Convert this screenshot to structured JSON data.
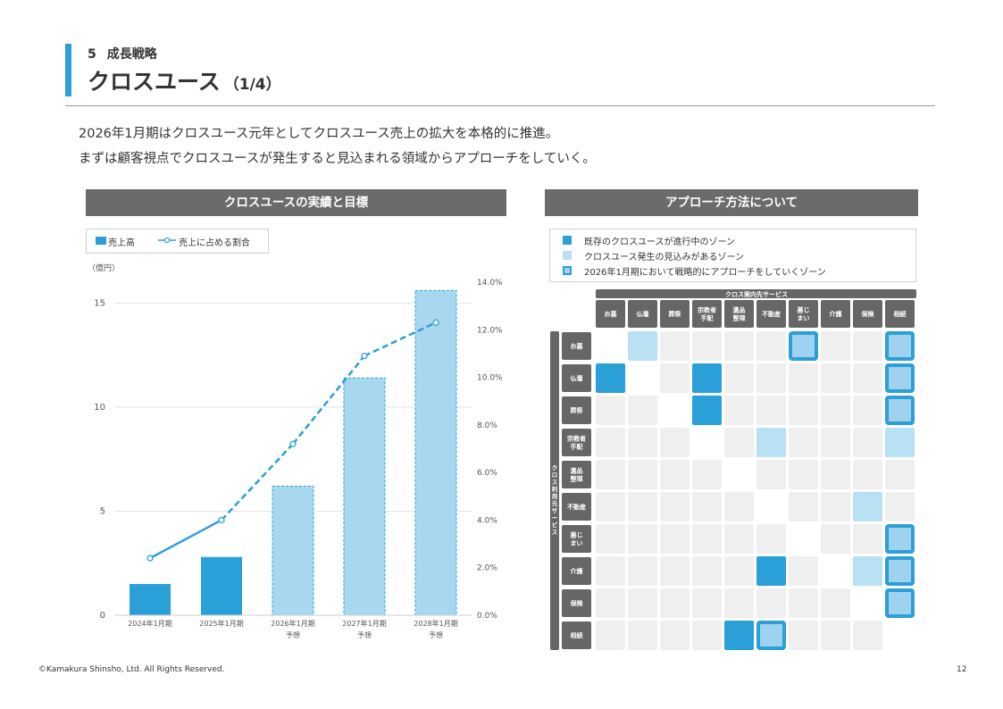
{
  "header": {
    "section_number": "5",
    "section_label": "成長戦略",
    "title": "クロスユース",
    "title_sub": "（1/4）"
  },
  "lead": [
    "2026年1月期はクロスユース元年としてクロスユース売上の拡大を本格的に推進。",
    "まずは顧客視点でクロスユースが発生すると見込まれる領域からアプローチをしていく。"
  ],
  "left_panel": {
    "title": "クロスユースの実績と目標"
  },
  "right_panel": {
    "title": "アプローチ方法について"
  },
  "chart_data": {
    "type": "bar",
    "categories": [
      [
        "2024年1月期",
        ""
      ],
      [
        "2025年1月期",
        ""
      ],
      [
        "2026年1月期",
        "予想"
      ],
      [
        "2027年1月期",
        "予想"
      ],
      [
        "2028年1月期",
        "予想"
      ]
    ],
    "unit_label": "（億円）",
    "legend": {
      "bar": "売上高",
      "line": "売上に占める割合"
    },
    "series": [
      {
        "name": "売上高",
        "type": "bar",
        "axis": "left",
        "values": [
          1.5,
          2.8,
          6.2,
          11.4,
          15.6
        ],
        "forecast": [
          false,
          false,
          true,
          true,
          true
        ]
      },
      {
        "name": "売上に占める割合",
        "type": "line",
        "axis": "right",
        "values": [
          2.4,
          4.0,
          7.2,
          10.9,
          12.3
        ],
        "forecast": [
          false,
          false,
          true,
          true,
          true
        ]
      }
    ],
    "y_left": {
      "range": [
        0,
        16
      ],
      "ticks": [
        "0",
        "5",
        "10",
        "15"
      ],
      "tick_values": [
        0,
        5,
        10,
        15
      ]
    },
    "y_right": {
      "range": [
        0,
        14
      ],
      "ticks": [
        "0.0%",
        "2.0%",
        "4.0%",
        "6.0%",
        "8.0%",
        "10.0%",
        "12.0%",
        "14.0%"
      ],
      "tick_values": [
        0,
        2,
        4,
        6,
        8,
        10,
        12,
        14
      ]
    },
    "grid": true,
    "colors": {
      "actual": "#2a9fd8",
      "forecast_fill": "#a8d8f0",
      "forecast_border": "#2a9fd8"
    }
  },
  "matrix": {
    "legend": [
      {
        "label": "既存のクロスユースが進行中のゾーン",
        "kind": "dark"
      },
      {
        "label": "クロスユース発生の見込みがあるゾーン",
        "kind": "light"
      },
      {
        "label": "2026年1月期において戦略的にアプローチをしていくゾーン",
        "kind": "strategic"
      }
    ],
    "col_group_label": "クロス案内先サービス",
    "row_group_label": "クロス利用元サービス",
    "columns": [
      "お墓",
      "仏壇",
      "葬祭",
      "宗教者手配",
      "遺品整理",
      "不動産",
      "墓じまい",
      "介護",
      "保険",
      "相続"
    ],
    "rows": [
      "お墓",
      "仏壇",
      "葬祭",
      "宗教者手配",
      "遺品整理",
      "不動産",
      "墓じまい",
      "介護",
      "保険",
      "相続"
    ],
    "cell_codes": {
      "0": "none",
      "1": "gray",
      "2": "light",
      "3": "dark",
      "4": "strategic",
      "5": "white"
    },
    "cells": [
      [
        5,
        2,
        1,
        1,
        1,
        1,
        4,
        1,
        1,
        4
      ],
      [
        3,
        5,
        1,
        3,
        1,
        1,
        1,
        1,
        1,
        4
      ],
      [
        1,
        1,
        5,
        3,
        1,
        1,
        1,
        1,
        1,
        4
      ],
      [
        1,
        1,
        1,
        5,
        1,
        2,
        1,
        1,
        1,
        2
      ],
      [
        1,
        1,
        1,
        1,
        5,
        1,
        1,
        1,
        1,
        1
      ],
      [
        1,
        1,
        1,
        1,
        1,
        5,
        1,
        1,
        2,
        1
      ],
      [
        1,
        1,
        1,
        1,
        1,
        1,
        5,
        1,
        1,
        4
      ],
      [
        1,
        1,
        1,
        1,
        1,
        3,
        1,
        5,
        2,
        4
      ],
      [
        1,
        1,
        1,
        1,
        1,
        1,
        1,
        1,
        5,
        4
      ],
      [
        1,
        1,
        1,
        1,
        3,
        4,
        1,
        1,
        1,
        5
      ]
    ],
    "colors": {
      "gray": "#efefef",
      "light": "#b9e0f3",
      "dark": "#2a9fd8",
      "strategic_fill": "#9fd2ee",
      "strategic_border": "#2a9fd8",
      "header": "#666666"
    }
  },
  "footer": {
    "copyright": "©Kamakura Shinsho, Ltd. All Rights Reserved.",
    "page": "12"
  }
}
